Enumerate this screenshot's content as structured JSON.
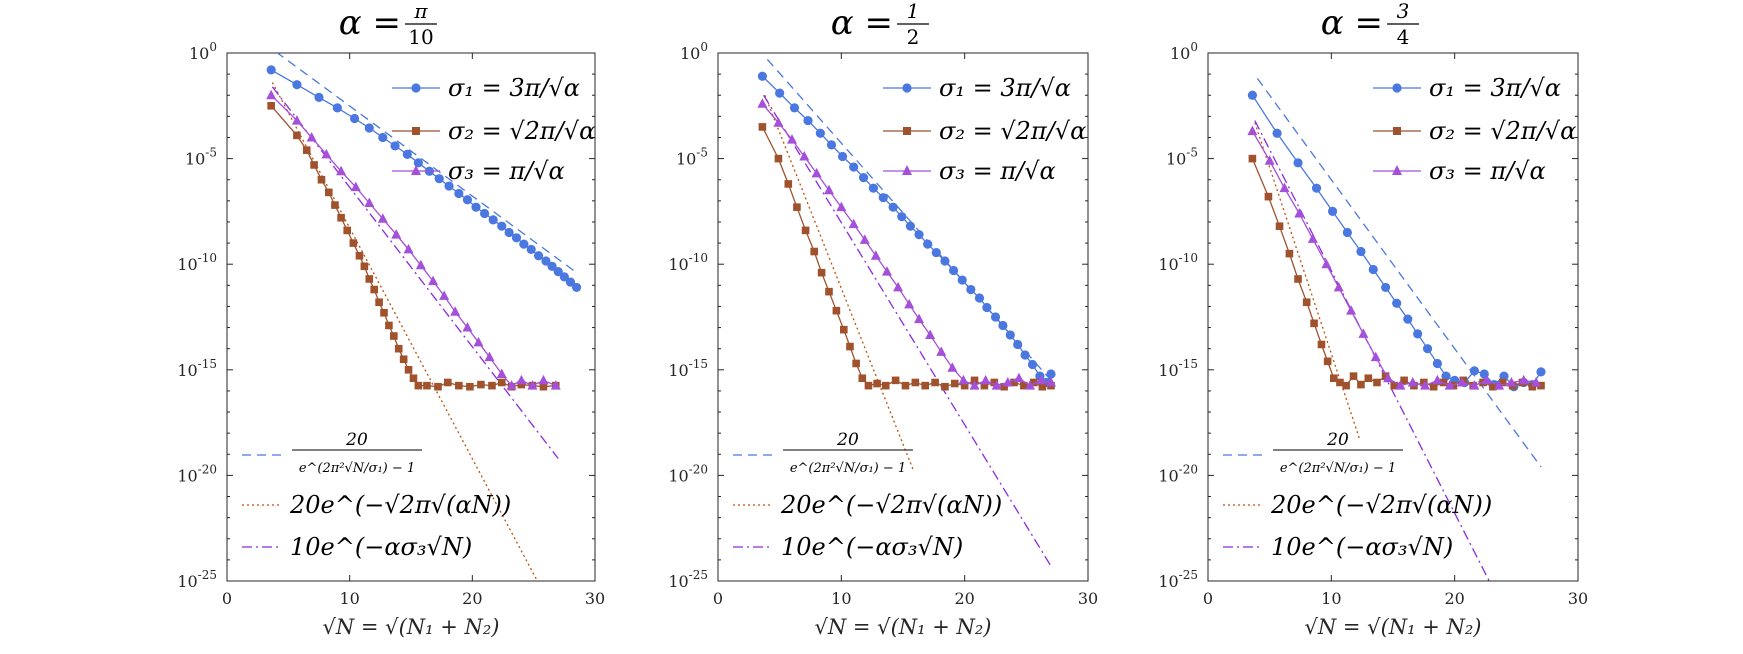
{
  "chart_data": [
    {
      "type": "line",
      "title_prefix": "α = ",
      "title_num": "π",
      "title_den": "10",
      "xlabel": "√N = √(N₁ + N₂)",
      "xlim": [
        0,
        30
      ],
      "ylim_log10": [
        -25,
        0
      ],
      "xticks": [
        "0",
        "10",
        "20",
        "30"
      ],
      "yticks": [
        {
          "base": "10",
          "exp": "0"
        },
        {
          "base": "10",
          "exp": "-5"
        },
        {
          "base": "10",
          "exp": "-10"
        },
        {
          "base": "10",
          "exp": "-15"
        },
        {
          "base": "10",
          "exp": "-20"
        },
        {
          "base": "10",
          "exp": "-25"
        }
      ],
      "series": [
        {
          "name": "σ1",
          "label": "σ₁ = 3π/√α",
          "color": "#4a78e0",
          "marker": "circle",
          "x": [
            3.6,
            5.7,
            7.5,
            9.0,
            10.4,
            11.6,
            12.7,
            13.7,
            14.7,
            15.6,
            16.5,
            17.3,
            18.1,
            18.9,
            19.6,
            20.3,
            21.0,
            21.7,
            22.4,
            23.0,
            23.6,
            24.2,
            24.8,
            25.4,
            26.0,
            26.5,
            27.0,
            27.5,
            28.0,
            28.5
          ],
          "log10y": [
            -0.8,
            -1.5,
            -2.1,
            -2.6,
            -3.1,
            -3.55,
            -4.0,
            -4.4,
            -4.8,
            -5.2,
            -5.6,
            -5.95,
            -6.3,
            -6.65,
            -6.95,
            -7.3,
            -7.6,
            -7.9,
            -8.2,
            -8.5,
            -8.75,
            -9.05,
            -9.3,
            -9.6,
            -9.85,
            -10.1,
            -10.35,
            -10.6,
            -10.85,
            -11.1
          ]
        },
        {
          "name": "σ2",
          "label": "σ₂ = √2π/√α",
          "color": "#a0522d",
          "marker": "square",
          "x": [
            3.6,
            5.7,
            6.5,
            7.1,
            7.7,
            8.3,
            8.8,
            9.3,
            9.8,
            10.3,
            10.8,
            11.2,
            11.6,
            12.0,
            12.4,
            12.8,
            13.2,
            13.6,
            14.0,
            14.4,
            14.8,
            15.2,
            15.6,
            16.3,
            17.2,
            18.0,
            18.9,
            19.8,
            20.7,
            21.6,
            22.4,
            23.2,
            24.0,
            24.9,
            25.8,
            26.8
          ],
          "log10y": [
            -2.5,
            -3.9,
            -4.6,
            -5.3,
            -6.0,
            -6.6,
            -7.2,
            -7.8,
            -8.4,
            -9.0,
            -9.6,
            -10.1,
            -10.7,
            -11.2,
            -11.8,
            -12.3,
            -12.9,
            -13.4,
            -14.0,
            -14.5,
            -15.0,
            -15.4,
            -15.75,
            -15.75,
            -15.8,
            -15.6,
            -15.75,
            -15.8,
            -15.7,
            -15.75,
            -15.6,
            -15.8,
            -15.7,
            -15.75,
            -15.8,
            -15.75
          ]
        },
        {
          "name": "σ3",
          "label": "σ₃ = π/√α",
          "color": "#a450d8",
          "marker": "triangle",
          "x": [
            3.6,
            5.7,
            6.9,
            8.1,
            9.3,
            10.5,
            11.6,
            12.7,
            13.8,
            14.8,
            15.8,
            16.8,
            17.7,
            18.6,
            19.6,
            20.5,
            21.4,
            22.4,
            23.2,
            24.0,
            24.9,
            25.8,
            26.8
          ],
          "log10y": [
            -2.0,
            -3.2,
            -4.0,
            -4.8,
            -5.6,
            -6.35,
            -7.1,
            -7.85,
            -8.6,
            -9.3,
            -10.05,
            -10.8,
            -11.5,
            -12.25,
            -13.0,
            -13.7,
            -14.4,
            -15.2,
            -15.75,
            -15.5,
            -15.75,
            -15.5,
            -15.75
          ]
        }
      ],
      "bounds": [
        {
          "name": "bound1",
          "label_num": "20",
          "label_den": "e^(2π²√N/σ₁) − 1",
          "style": "dashed",
          "color": "#4a78e0",
          "x": [
            4.0,
            28.5
          ],
          "log10y": [
            0.05,
            -10.4
          ]
        },
        {
          "name": "bound2",
          "label": "20e^(−√2π√(αN))",
          "style": "dotted",
          "color": "#c0500a",
          "x": [
            3.7,
            25.3
          ],
          "log10y": [
            -1.4,
            -25.0
          ]
        },
        {
          "name": "bound3",
          "label": "10e^(−ασ₃√N)",
          "style": "dashdot",
          "color": "#8a2be2",
          "x": [
            3.7,
            27.0
          ],
          "log10y": [
            -1.6,
            -19.2
          ]
        }
      ]
    },
    {
      "type": "line",
      "title_prefix": "α = ",
      "title_num": "1",
      "title_den": "2",
      "xlabel": "√N = √(N₁ + N₂)",
      "xlim": [
        0,
        30
      ],
      "ylim_log10": [
        -25,
        0
      ],
      "xticks": [
        "0",
        "10",
        "20",
        "30"
      ],
      "yticks": [
        {
          "base": "10",
          "exp": "0"
        },
        {
          "base": "10",
          "exp": "-5"
        },
        {
          "base": "10",
          "exp": "-10"
        },
        {
          "base": "10",
          "exp": "-15"
        },
        {
          "base": "10",
          "exp": "-20"
        },
        {
          "base": "10",
          "exp": "-25"
        }
      ],
      "series": [
        {
          "name": "σ1",
          "label": "σ₁ = 3π/√α",
          "color": "#4a78e0",
          "marker": "circle",
          "x": [
            3.6,
            5.0,
            6.2,
            7.3,
            8.3,
            9.2,
            10.1,
            11.0,
            11.8,
            12.6,
            13.4,
            14.2,
            14.9,
            15.6,
            16.3,
            17.0,
            17.7,
            18.4,
            19.1,
            19.8,
            20.5,
            21.2,
            21.8,
            22.5,
            23.1,
            23.7,
            24.3,
            24.9,
            25.5,
            26.1,
            26.6,
            27.0
          ],
          "log10y": [
            -1.1,
            -1.9,
            -2.6,
            -3.2,
            -3.8,
            -4.35,
            -4.9,
            -5.4,
            -5.9,
            -6.4,
            -6.85,
            -7.3,
            -7.75,
            -8.2,
            -8.6,
            -9.05,
            -9.45,
            -9.85,
            -10.3,
            -10.75,
            -11.2,
            -11.6,
            -12.05,
            -12.5,
            -12.9,
            -13.35,
            -13.8,
            -14.3,
            -14.75,
            -15.3,
            -15.6,
            -15.2
          ]
        },
        {
          "name": "σ2",
          "label": "σ₂ = √2π/√α",
          "color": "#a0522d",
          "marker": "square",
          "x": [
            3.6,
            4.9,
            5.7,
            6.4,
            7.1,
            7.8,
            8.4,
            9.0,
            9.6,
            10.2,
            10.7,
            11.2,
            11.7,
            12.2,
            12.9,
            13.6,
            14.4,
            15.2,
            16.0,
            16.8,
            17.6,
            18.4,
            19.2,
            20.0,
            20.8,
            21.6,
            22.4,
            23.2,
            24.0,
            24.8,
            25.6,
            26.3,
            27.0
          ],
          "log10y": [
            -3.5,
            -5.0,
            -6.2,
            -7.3,
            -8.4,
            -9.4,
            -10.4,
            -11.3,
            -12.2,
            -13.1,
            -13.9,
            -14.7,
            -15.4,
            -15.75,
            -15.65,
            -15.75,
            -15.5,
            -15.75,
            -15.6,
            -15.75,
            -15.6,
            -15.8,
            -15.65,
            -15.75,
            -15.5,
            -15.75,
            -15.6,
            -15.8,
            -15.6,
            -15.75,
            -15.6,
            -15.8,
            -15.75
          ]
        },
        {
          "name": "σ3",
          "label": "σ₃ = π/√α",
          "color": "#a450d8",
          "marker": "triangle",
          "x": [
            3.6,
            4.9,
            6.0,
            7.0,
            8.0,
            9.0,
            10.0,
            11.0,
            11.9,
            12.8,
            13.7,
            14.6,
            15.5,
            16.3,
            17.2,
            18.1,
            19.0,
            19.9,
            20.8,
            21.7,
            22.6,
            23.5,
            24.4,
            25.3,
            26.2,
            27.0
          ],
          "log10y": [
            -2.4,
            -3.3,
            -4.1,
            -4.9,
            -5.7,
            -6.5,
            -7.3,
            -8.1,
            -8.85,
            -9.6,
            -10.35,
            -11.1,
            -11.9,
            -12.6,
            -13.35,
            -14.15,
            -14.9,
            -15.5,
            -15.75,
            -15.5,
            -15.75,
            -15.6,
            -15.4,
            -15.75,
            -15.5,
            -15.6
          ]
        }
      ],
      "bounds": [
        {
          "name": "bound1",
          "label_num": "20",
          "label_den": "e^(2π²√N/σ₁) − 1",
          "style": "dashed",
          "color": "#4a78e0",
          "x": [
            4.0,
            27.0
          ],
          "log10y": [
            -0.3,
            -15.5
          ]
        },
        {
          "name": "bound2",
          "label": "20e^(−√2π√(αN))",
          "style": "dotted",
          "color": "#c0500a",
          "x": [
            3.8,
            15.8
          ],
          "log10y": [
            -2.0,
            -19.7
          ]
        },
        {
          "name": "bound3",
          "label": "10e^(−ασ₃√N)",
          "style": "dashdot",
          "color": "#8a2be2",
          "x": [
            3.7,
            27.0
          ],
          "log10y": [
            -2.0,
            -24.3
          ]
        }
      ]
    },
    {
      "type": "line",
      "title_prefix": "α = ",
      "title_num": "3",
      "title_den": "4",
      "xlabel": "√N = √(N₁ + N₂)",
      "xlim": [
        0,
        30
      ],
      "ylim_log10": [
        -25,
        0
      ],
      "xticks": [
        "0",
        "10",
        "20",
        "30"
      ],
      "yticks": [
        {
          "base": "10",
          "exp": "0"
        },
        {
          "base": "10",
          "exp": "-5"
        },
        {
          "base": "10",
          "exp": "-10"
        },
        {
          "base": "10",
          "exp": "-15"
        },
        {
          "base": "10",
          "exp": "-20"
        },
        {
          "base": "10",
          "exp": "-25"
        }
      ],
      "series": [
        {
          "name": "σ1",
          "label": "σ₁ = 3π/√α",
          "color": "#4a78e0",
          "marker": "circle",
          "x": [
            3.6,
            5.6,
            7.3,
            8.8,
            10.1,
            11.3,
            12.4,
            13.4,
            14.4,
            15.3,
            16.2,
            17.0,
            17.8,
            18.6,
            19.3,
            20.0,
            20.8,
            21.6,
            22.4,
            23.2,
            24.0,
            24.8,
            25.6,
            26.3,
            27.0
          ],
          "log10y": [
            -2.0,
            -3.8,
            -5.2,
            -6.4,
            -7.5,
            -8.5,
            -9.4,
            -10.25,
            -11.1,
            -11.85,
            -12.6,
            -13.3,
            -14.0,
            -14.7,
            -15.3,
            -15.5,
            -15.6,
            -15.05,
            -15.2,
            -15.7,
            -15.3,
            -15.8,
            -15.6,
            -15.7,
            -15.1
          ]
        },
        {
          "name": "σ2",
          "label": "σ₂ = √2π/√α",
          "color": "#a0522d",
          "marker": "square",
          "x": [
            3.6,
            4.9,
            5.8,
            6.6,
            7.3,
            8.0,
            8.6,
            9.2,
            9.7,
            10.2,
            10.7,
            11.2,
            11.8,
            12.4,
            13.0,
            13.7,
            14.4,
            15.1,
            15.9,
            16.7,
            17.5,
            18.3,
            19.1,
            19.9,
            20.7,
            21.5,
            22.3,
            23.1,
            23.9,
            24.7,
            25.5,
            26.3,
            27.0
          ],
          "log10y": [
            -5.0,
            -6.8,
            -8.2,
            -9.5,
            -10.7,
            -11.8,
            -12.8,
            -13.8,
            -14.6,
            -15.4,
            -15.6,
            -15.75,
            -15.3,
            -15.7,
            -15.4,
            -15.6,
            -15.3,
            -15.75,
            -15.5,
            -15.75,
            -15.6,
            -15.8,
            -15.6,
            -15.75,
            -15.5,
            -15.75,
            -15.6,
            -15.8,
            -15.6,
            -15.75,
            -15.6,
            -15.8,
            -15.75
          ]
        },
        {
          "name": "σ3",
          "label": "σ₃ = π/√α",
          "color": "#a450d8",
          "marker": "triangle",
          "x": [
            3.6,
            5.0,
            6.2,
            7.4,
            8.5,
            9.6,
            10.6,
            11.6,
            12.6,
            13.6,
            14.6,
            15.6,
            16.6,
            17.6,
            18.6,
            19.6,
            20.6,
            21.6,
            22.6,
            23.6,
            24.6,
            25.6,
            26.6
          ],
          "log10y": [
            -3.7,
            -5.1,
            -6.4,
            -7.6,
            -8.8,
            -10.0,
            -11.1,
            -12.2,
            -13.3,
            -14.4,
            -15.4,
            -15.75,
            -15.6,
            -15.75,
            -15.5,
            -15.75,
            -15.6,
            -15.75,
            -15.5,
            -15.75,
            -15.6,
            -15.5,
            -15.6
          ]
        }
      ],
      "bounds": [
        {
          "name": "bound1",
          "label_num": "20",
          "label_den": "e^(2π²√N/σ₁) − 1",
          "style": "dashed",
          "color": "#4a78e0",
          "x": [
            4.0,
            27.0
          ],
          "log10y": [
            -1.2,
            -19.6
          ]
        },
        {
          "name": "bound2",
          "label": "20e^(−√2π√(αN))",
          "style": "dotted",
          "color": "#c0500a",
          "x": [
            3.8,
            12.3
          ],
          "log10y": [
            -3.3,
            -18.3
          ]
        },
        {
          "name": "bound3",
          "label": "10e^(−ασ₃√N)",
          "style": "dashdot",
          "color": "#8a2be2",
          "x": [
            3.8,
            22.8
          ],
          "log10y": [
            -3.2,
            -25.0
          ]
        }
      ]
    }
  ]
}
